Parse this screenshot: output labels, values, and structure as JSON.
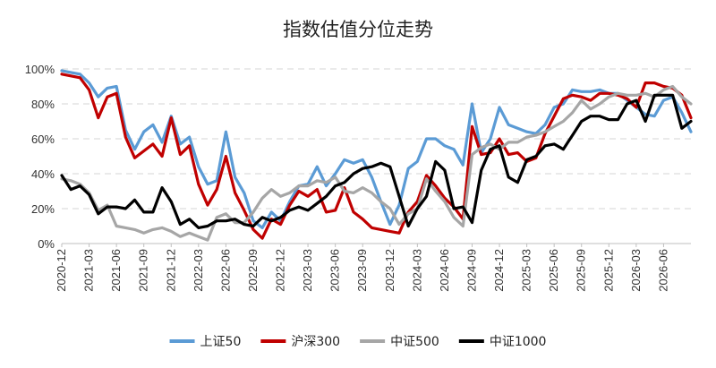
{
  "chart_data": {
    "type": "line",
    "title": "指数估值分位走势",
    "ylim": [
      0,
      100
    ],
    "y_ticks": [
      "0%",
      "20%",
      "40%",
      "60%",
      "80%",
      "100%"
    ],
    "x_tick_labels": [
      "2020-12",
      "2021-03",
      "2021-06",
      "2021-09",
      "2021-12",
      "2022-03",
      "2022-06",
      "2022-09",
      "2022-12",
      "2023-03",
      "2023-06",
      "2023-09",
      "2023-12",
      "2024-03",
      "2024-06",
      "2024-09",
      "2024-12",
      "2025-03",
      "2025-06",
      "2025-09",
      "2025-12",
      "2026-03",
      "2026-06"
    ],
    "x": [
      "2020-12",
      "2021-01",
      "2021-02",
      "2021-03",
      "2021-04",
      "2021-05",
      "2021-06",
      "2021-07",
      "2021-08",
      "2021-09",
      "2021-10",
      "2021-11",
      "2021-12",
      "2022-01",
      "2022-02",
      "2022-03",
      "2022-04",
      "2022-05",
      "2022-06",
      "2022-07",
      "2022-08",
      "2022-09",
      "2022-10",
      "2022-11",
      "2022-12",
      "2023-01",
      "2023-02",
      "2023-03",
      "2023-04",
      "2023-05",
      "2023-06",
      "2023-07",
      "2023-08",
      "2023-09",
      "2023-10",
      "2023-11",
      "2023-12",
      "2024-01",
      "2024-02",
      "2024-03",
      "2024-04",
      "2024-05",
      "2024-06",
      "2024-07",
      "2024-08",
      "2024-09",
      "2024-10",
      "2024-11",
      "2024-12",
      "2025-01",
      "2025-02",
      "2025-03",
      "2025-04",
      "2025-05",
      "2025-06",
      "2025-07",
      "2025-08",
      "2025-09",
      "2025-10",
      "2025-11",
      "2025-12",
      "2026-01",
      "2026-02",
      "2026-03",
      "2026-04",
      "2026-05",
      "2026-06",
      "2026-07",
      "2026-08",
      "2026-09"
    ],
    "series": [
      {
        "name": "上证50",
        "color": "#5b9bd5",
        "values": [
          99,
          98,
          97,
          92,
          84,
          89,
          90,
          65,
          54,
          64,
          68,
          58,
          73,
          57,
          61,
          44,
          34,
          36,
          64,
          38,
          29,
          13,
          9,
          18,
          13,
          24,
          33,
          34,
          44,
          33,
          40,
          48,
          46,
          48,
          38,
          24,
          11,
          22,
          43,
          47,
          60,
          60,
          56,
          54,
          45,
          80,
          52,
          60,
          78,
          68,
          66,
          64,
          63,
          68,
          78,
          80,
          88,
          87,
          87,
          88,
          86,
          86,
          82,
          78,
          74,
          73,
          82,
          84,
          75,
          64
        ]
      },
      {
        "name": "沪深300",
        "color": "#c00000",
        "values": [
          97,
          96,
          95,
          88,
          72,
          84,
          86,
          61,
          49,
          53,
          57,
          50,
          72,
          51,
          56,
          34,
          22,
          31,
          50,
          29,
          19,
          8,
          3,
          14,
          11,
          22,
          30,
          27,
          31,
          18,
          19,
          32,
          18,
          14,
          9,
          8,
          7,
          6,
          18,
          24,
          39,
          33,
          26,
          21,
          14,
          67,
          51,
          52,
          60,
          51,
          52,
          47,
          49,
          63,
          73,
          83,
          85,
          84,
          82,
          86,
          86,
          85,
          83,
          78,
          92,
          92,
          90,
          89,
          85,
          72
        ]
      },
      {
        "name": "中证500",
        "color": "#a6a6a6",
        "values": [
          37,
          36,
          34,
          29,
          19,
          22,
          10,
          9,
          8,
          6,
          8,
          9,
          7,
          4,
          6,
          4,
          2,
          15,
          17,
          12,
          12,
          18,
          26,
          31,
          27,
          29,
          33,
          33,
          36,
          35,
          38,
          30,
          29,
          32,
          29,
          24,
          20,
          11,
          17,
          20,
          37,
          30,
          24,
          15,
          10,
          51,
          55,
          57,
          54,
          58,
          58,
          61,
          62,
          64,
          67,
          70,
          75,
          82,
          77,
          80,
          84,
          86,
          85,
          85,
          86,
          84,
          88,
          90,
          84,
          80
        ]
      },
      {
        "name": "中证1000",
        "color": "#000000",
        "values": [
          39,
          31,
          33,
          28,
          17,
          21,
          21,
          20,
          25,
          18,
          18,
          32,
          24,
          11,
          14,
          9,
          10,
          13,
          13,
          14,
          11,
          10,
          15,
          13,
          15,
          19,
          21,
          19,
          23,
          27,
          33,
          35,
          40,
          43,
          44,
          46,
          44,
          27,
          10,
          20,
          27,
          47,
          42,
          20,
          21,
          12,
          42,
          54,
          56,
          38,
          35,
          48,
          50,
          56,
          57,
          54,
          62,
          70,
          73,
          73,
          71,
          71,
          80,
          82,
          70,
          85,
          85,
          85,
          66,
          70
        ]
      }
    ],
    "legend_position": "bottom"
  }
}
